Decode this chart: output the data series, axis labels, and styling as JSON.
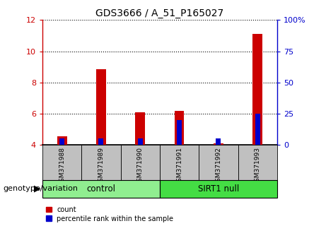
{
  "title": "GDS3666 / A_51_P165027",
  "categories": [
    "GSM371988",
    "GSM371989",
    "GSM371990",
    "GSM371991",
    "GSM371992",
    "GSM371993"
  ],
  "red_values": [
    4.55,
    8.85,
    6.1,
    6.2,
    4.1,
    11.1
  ],
  "blue_values_pct": [
    5,
    5,
    5,
    20,
    5,
    25
  ],
  "ylim_left": [
    4,
    12
  ],
  "ylim_right": [
    0,
    100
  ],
  "yticks_left": [
    4,
    6,
    8,
    10,
    12
  ],
  "yticks_right": [
    0,
    25,
    50,
    75,
    100
  ],
  "ytick_labels_right": [
    "0",
    "25",
    "50",
    "75",
    "100%"
  ],
  "red_color": "#cc0000",
  "blue_color": "#0000cc",
  "gray_color": "#c0c0c0",
  "light_green": "#90ee90",
  "bright_green": "#44dd44",
  "group_labels": [
    "control",
    "SIRT1 null"
  ],
  "genotype_label": "genotype/variation",
  "legend_red": "count",
  "legend_blue": "percentile rank within the sample",
  "dotted_yticks": [
    6,
    8,
    10,
    12
  ],
  "bar_baseline": 4,
  "bar_width": 0.25
}
